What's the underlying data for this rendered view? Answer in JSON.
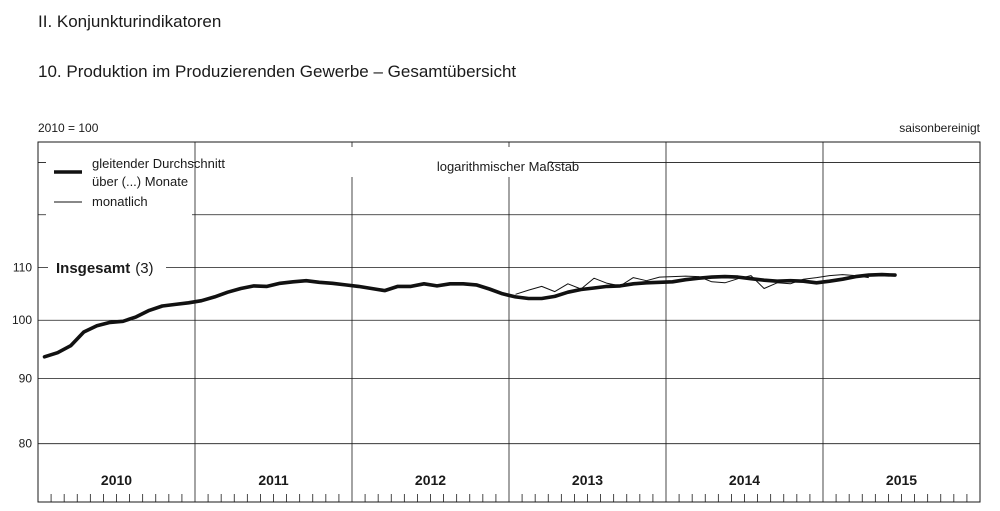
{
  "header": {
    "section": "II. Konjunkturindikatoren",
    "subtitle": "10. Produktion im Produzierenden Gewerbe – Gesamtübersicht"
  },
  "chart_data": {
    "type": "line",
    "base_label": "2010 = 100",
    "adjustment_label": "saisonbereinigt",
    "scale_note": "logarithmischer Maßstab",
    "log_scale": true,
    "grid": true,
    "legend_position": "top-left",
    "legend": {
      "line1": "gleitender Durchschnitt",
      "line2": "über (...) Monate",
      "line3": "monatlich"
    },
    "series_label": {
      "name": "Insgesamt",
      "note": "(3)"
    },
    "y_ticks": [
      80,
      90,
      100,
      110
    ],
    "ylim": [
      72,
      138
    ],
    "years": [
      "2010",
      "2011",
      "2012",
      "2013",
      "2014",
      "2015"
    ],
    "x_start": "2010-01",
    "x_end": "2015-12",
    "series": [
      {
        "name": "gleitender Durchschnitt über (...) Monate",
        "start": "2010-01",
        "values": [
          93.6,
          94.3,
          95.5,
          97.9,
          99.0,
          99.6,
          99.8,
          100.6,
          101.8,
          102.6,
          102.9,
          103.2,
          103.6,
          104.3,
          105.2,
          105.9,
          106.4,
          106.3,
          106.9,
          107.2,
          107.4,
          107.1,
          106.9,
          106.6,
          106.3,
          105.9,
          105.5,
          106.3,
          106.3,
          106.8,
          106.4,
          106.8,
          106.8,
          106.6,
          105.8,
          104.9,
          104.3,
          104.0,
          104.0,
          104.4,
          105.2,
          105.7,
          106.0,
          106.3,
          106.4,
          106.8,
          107.0,
          107.1,
          107.2,
          107.6,
          107.9,
          108.1,
          108.2,
          108.1,
          107.8,
          107.5,
          107.3,
          107.4,
          107.3,
          107.0,
          107.3,
          107.7,
          108.2,
          108.5,
          108.6,
          108.5
        ]
      },
      {
        "name": "monatlich",
        "start": "2013-01",
        "values": [
          104.8,
          105.6,
          106.3,
          105.3,
          106.8,
          105.8,
          107.9,
          106.9,
          106.4,
          108.0,
          107.4,
          108.1,
          108.2,
          108.3,
          108.2,
          107.2,
          107.0,
          107.8,
          108.4,
          105.9,
          107.0,
          106.8,
          107.7,
          108.0,
          108.4,
          108.6,
          108.4,
          108.0
        ]
      }
    ]
  }
}
